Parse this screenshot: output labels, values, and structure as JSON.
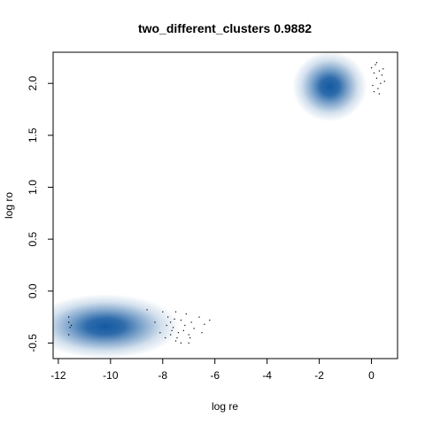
{
  "chart_data": {
    "type": "scatter",
    "title": "two_different_clusters 0.9882",
    "xlabel": "log re",
    "ylabel": "log ro",
    "xlim": [
      -12.2,
      1.0
    ],
    "ylim": [
      -0.65,
      2.3
    ],
    "xticks": [
      -12,
      -10,
      -8,
      -6,
      -4,
      -2,
      0
    ],
    "xtick_labels": [
      "-12",
      "-10",
      "-8",
      "-6",
      "-4",
      "-2",
      "0"
    ],
    "yticks": [
      -0.5,
      0.0,
      0.5,
      1.0,
      1.5,
      2.0
    ],
    "ytick_labels": [
      "-0.5",
      "0.0",
      "0.5",
      "1.0",
      "1.5",
      "2.0"
    ],
    "grid": false,
    "density_color": "#08519c",
    "clusters": [
      {
        "center": [
          -10.2,
          -0.34
        ],
        "spread": [
          1.3,
          0.12
        ]
      },
      {
        "center": [
          -1.6,
          1.97
        ],
        "spread": [
          0.65,
          0.13
        ]
      }
    ],
    "series": [
      {
        "points": [
          [
            -11.6,
            -0.25
          ],
          [
            -11.6,
            -0.3
          ],
          [
            -11.55,
            -0.35
          ],
          [
            -11.6,
            -0.42
          ],
          [
            -11.5,
            -0.33
          ],
          [
            -8.0,
            -0.2
          ],
          [
            -7.8,
            -0.25
          ],
          [
            -7.7,
            -0.3
          ],
          [
            -7.5,
            -0.2
          ],
          [
            -7.3,
            -0.28
          ],
          [
            -7.1,
            -0.22
          ],
          [
            -6.9,
            -0.3
          ],
          [
            -6.6,
            -0.25
          ],
          [
            -6.4,
            -0.32
          ],
          [
            -7.6,
            -0.35
          ],
          [
            -7.4,
            -0.4
          ],
          [
            -7.2,
            -0.38
          ],
          [
            -7.0,
            -0.42
          ],
          [
            -6.8,
            -0.36
          ],
          [
            -7.9,
            -0.45
          ],
          [
            -7.5,
            -0.48
          ],
          [
            -7.3,
            -0.5
          ],
          [
            -8.1,
            -0.4
          ],
          [
            -7.7,
            -0.42
          ],
          [
            -6.5,
            -0.4
          ],
          [
            -7.15,
            -0.33
          ],
          [
            -7.55,
            -0.27
          ],
          [
            -6.95,
            -0.45
          ],
          [
            -7.85,
            -0.33
          ],
          [
            -8.3,
            -0.3
          ],
          [
            -8.6,
            -0.18
          ],
          [
            -6.2,
            -0.28
          ],
          [
            -7.0,
            -0.5
          ],
          [
            -7.45,
            -0.45
          ],
          [
            -7.65,
            -0.38
          ],
          [
            0.0,
            2.15
          ],
          [
            0.1,
            2.1
          ],
          [
            0.2,
            2.05
          ],
          [
            0.3,
            2.12
          ],
          [
            0.35,
            2.0
          ],
          [
            0.25,
            1.95
          ],
          [
            0.4,
            2.08
          ],
          [
            0.05,
            1.98
          ],
          [
            0.15,
            2.18
          ],
          [
            0.45,
            2.14
          ],
          [
            0.1,
            1.92
          ],
          [
            0.3,
            1.9
          ],
          [
            0.5,
            2.02
          ],
          [
            0.2,
            2.2
          ]
        ]
      }
    ]
  }
}
